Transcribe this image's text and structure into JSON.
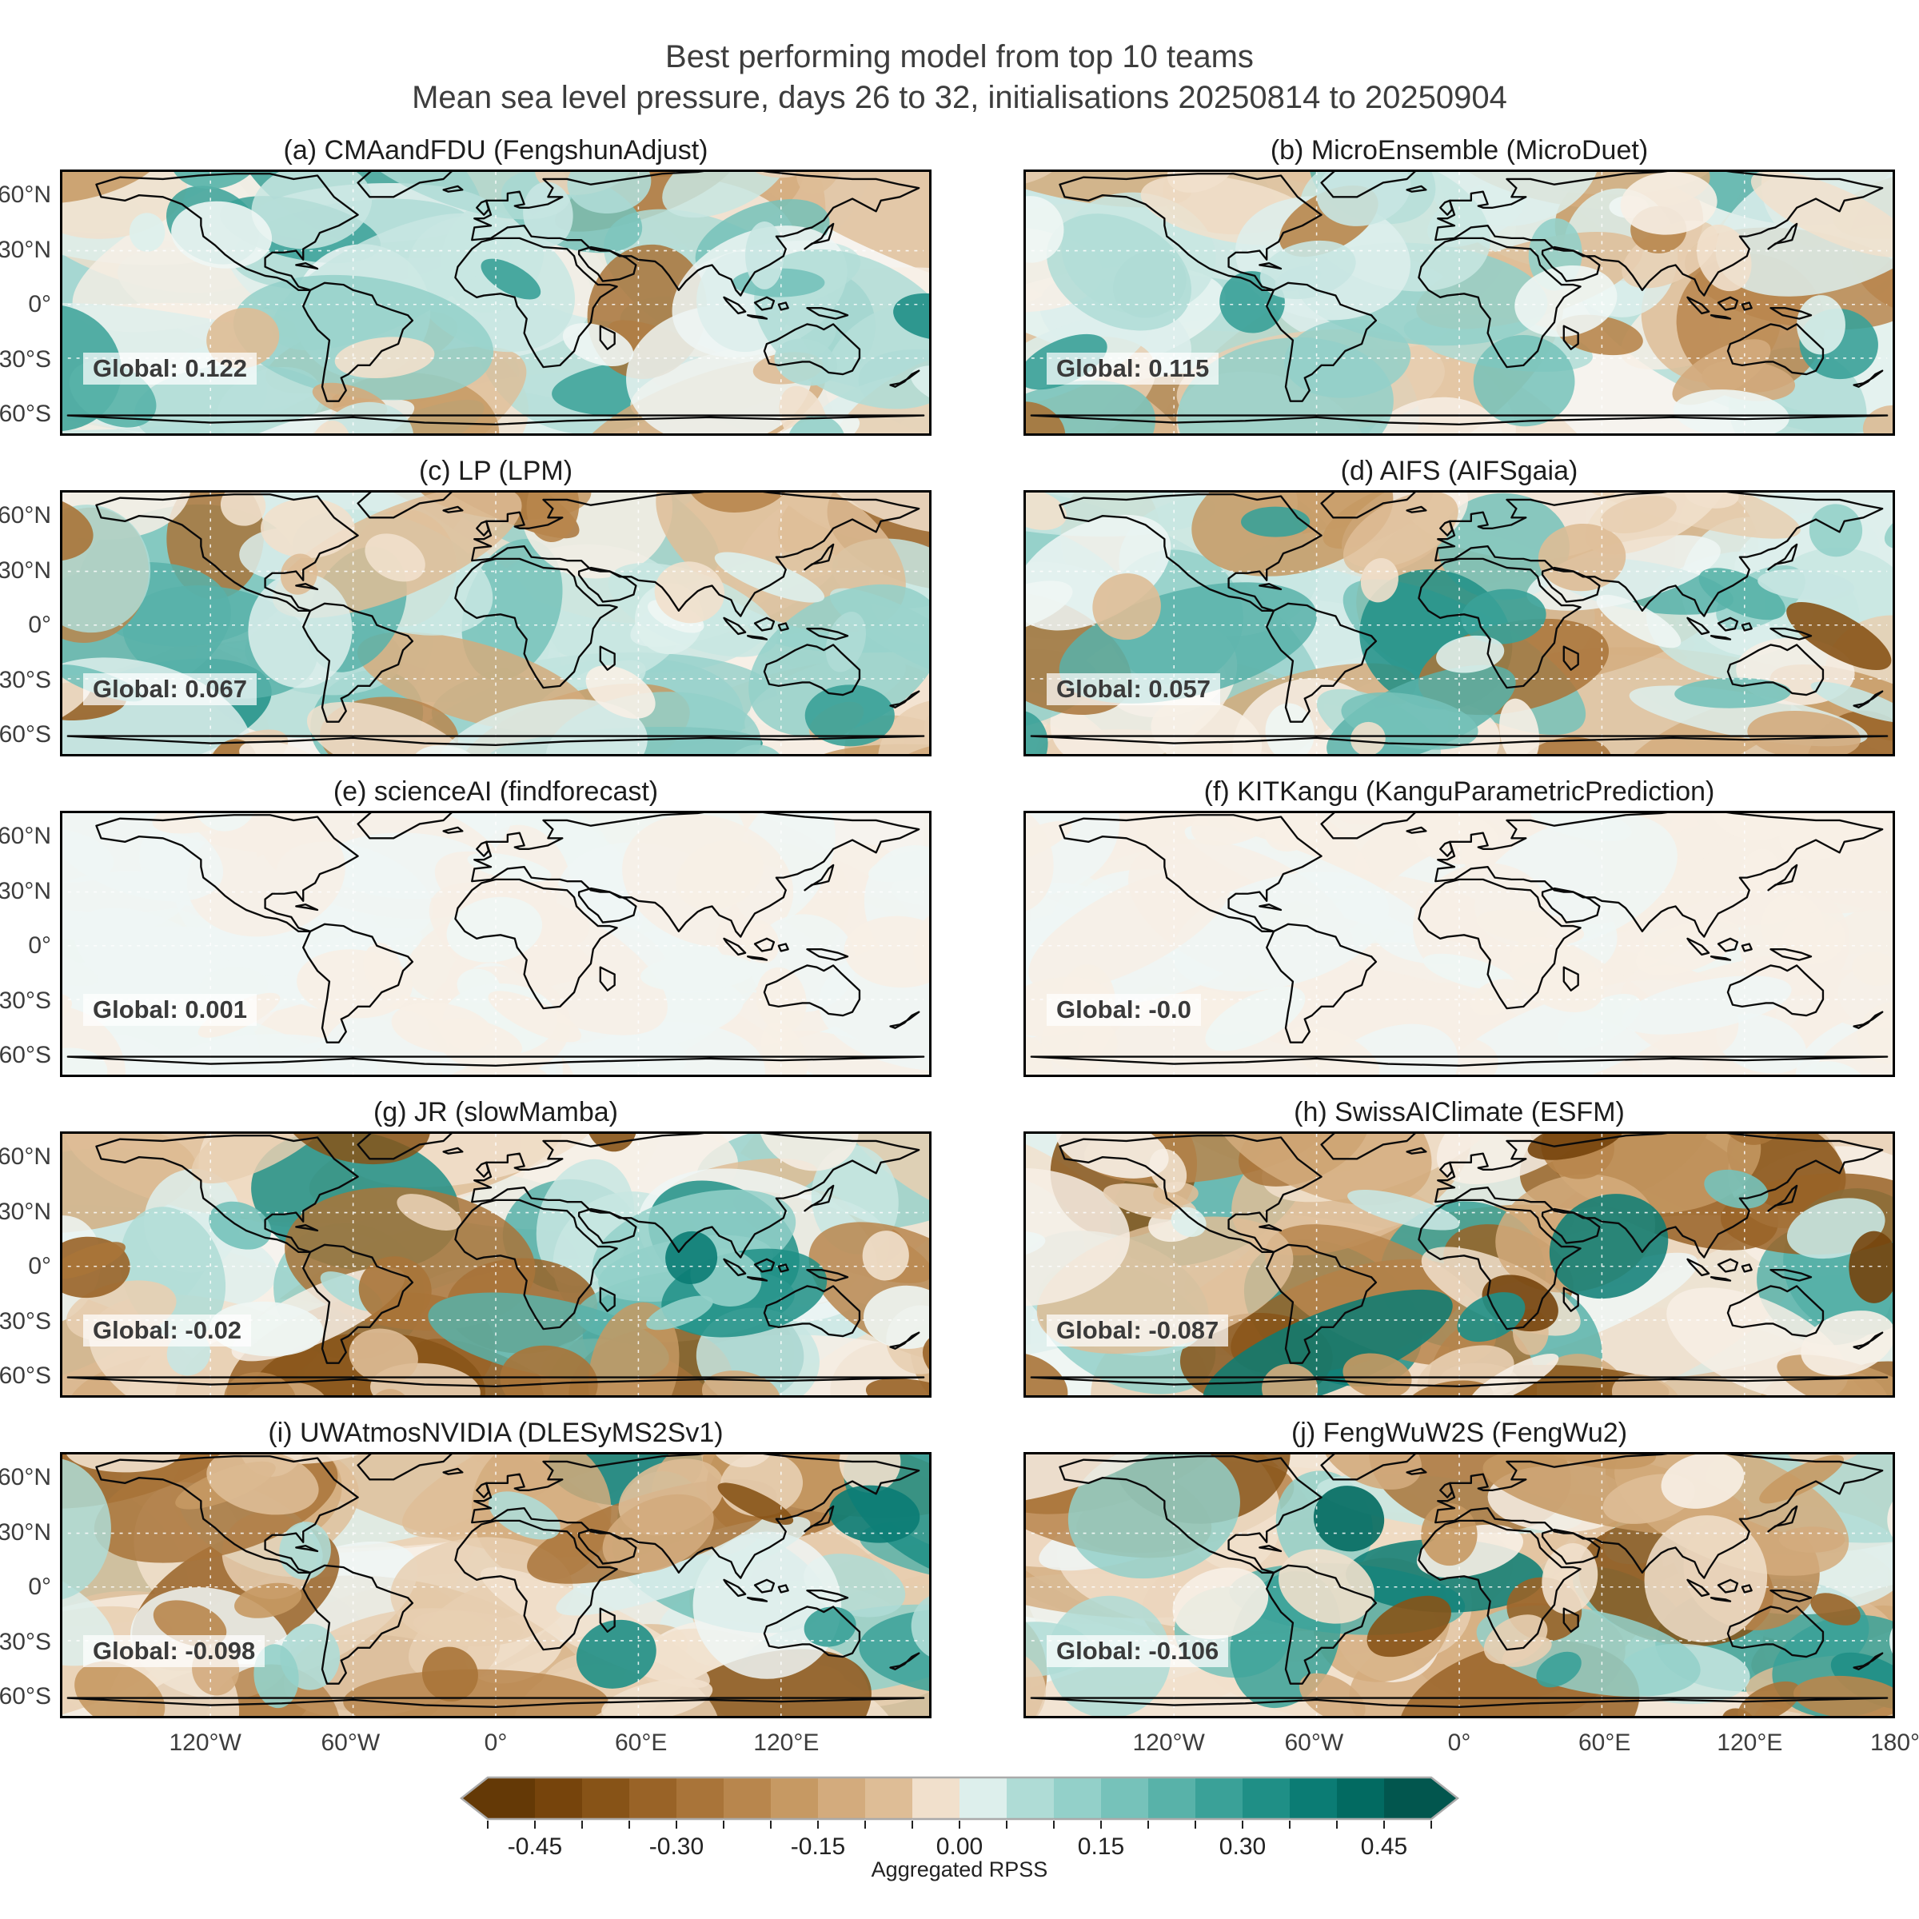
{
  "figure": {
    "title": "Best performing model from top 10 teams",
    "subtitle": "Mean sea level pressure, days 26 to 32, initialisations 20250814 to 20250904"
  },
  "chart_data": {
    "type": "heatmap",
    "subtype": "global-map-grid",
    "projection": "equirectangular",
    "grid": {
      "rows": 5,
      "cols": 2
    },
    "variable": "Mean sea level pressure",
    "lead_days": "26 to 32",
    "initialisations": "20250814 to 20250904",
    "panels": [
      {
        "id": "a",
        "team": "CMAandFDU",
        "model": "FengshunAdjust",
        "title": "(a) CMAandFDU (FengshunAdjust)",
        "global_rpss": 0.122,
        "global_label": "Global: 0.122",
        "column": "left",
        "field_character": {
          "teal_weight": 0.6,
          "band_amp": 0.38,
          "polar_brown": 0.15,
          "amplitude": 0.8,
          "seed": 11
        }
      },
      {
        "id": "b",
        "team": "MicroEnsemble",
        "model": "MicroDuet",
        "title": "(b) MicroEnsemble (MicroDuet)",
        "global_rpss": 0.115,
        "global_label": "Global: 0.115",
        "column": "right",
        "field_character": {
          "teal_weight": 0.6,
          "band_amp": 0.34,
          "polar_brown": 0.15,
          "amplitude": 0.7,
          "seed": 22
        }
      },
      {
        "id": "c",
        "team": "LP",
        "model": "LPM",
        "title": "(c) LP (LPM)",
        "global_rpss": 0.067,
        "global_label": "Global: 0.067",
        "column": "left",
        "field_character": {
          "teal_weight": 0.54,
          "band_amp": 0.34,
          "polar_brown": 0.22,
          "amplitude": 0.85,
          "seed": 33
        }
      },
      {
        "id": "d",
        "team": "AIFS",
        "model": "AIFSgaia",
        "title": "(d) AIFS (AIFSgaia)",
        "global_rpss": 0.057,
        "global_label": "Global: 0.057",
        "column": "right",
        "field_character": {
          "teal_weight": 0.5,
          "band_amp": 0.32,
          "polar_brown": 0.22,
          "amplitude": 0.92,
          "seed": 44
        }
      },
      {
        "id": "e",
        "team": "scienceAI",
        "model": "findforecast",
        "title": "(e) scienceAI (findforecast)",
        "global_rpss": 0.001,
        "global_label": "Global: 0.001",
        "column": "left",
        "field_character": {
          "teal_weight": 0.5,
          "band_amp": 0.0,
          "polar_brown": 0.0,
          "amplitude": 0.05,
          "seed": 55
        }
      },
      {
        "id": "f",
        "team": "KITKangu",
        "model": "KanguParametricPrediction",
        "title": "(f) KITKangu (KanguParametricPrediction)",
        "global_rpss": -0.0,
        "global_label": "Global: -0.0",
        "column": "right",
        "field_character": {
          "teal_weight": 0.45,
          "band_amp": 0.0,
          "polar_brown": 0.0,
          "amplitude": 0.04,
          "seed": 66
        }
      },
      {
        "id": "g",
        "team": "JR",
        "model": "slowMamba",
        "title": "(g) JR (slowMamba)",
        "global_rpss": -0.02,
        "global_label": "Global: -0.02",
        "column": "left",
        "field_character": {
          "teal_weight": 0.47,
          "band_amp": 0.18,
          "polar_brown": 0.45,
          "amplitude": 0.95,
          "seed": 77
        }
      },
      {
        "id": "h",
        "team": "SwissAIClimate",
        "model": "ESFM",
        "title": "(h) SwissAIClimate (ESFM)",
        "global_rpss": -0.087,
        "global_label": "Global: -0.087",
        "column": "right",
        "field_character": {
          "teal_weight": 0.48,
          "band_amp": 0.15,
          "polar_brown": 0.5,
          "amplitude": 1.0,
          "seed": 88
        }
      },
      {
        "id": "i",
        "team": "UWAtmosNVIDIA",
        "model": "DLESyMS2Sv1",
        "title": "(i) UWAtmosNVIDIA (DLESyMS2Sv1)",
        "global_rpss": -0.098,
        "global_label": "Global: -0.098",
        "column": "left",
        "field_character": {
          "teal_weight": 0.44,
          "band_amp": 0.12,
          "polar_brown": 0.45,
          "amplitude": 1.0,
          "seed": 99
        }
      },
      {
        "id": "j",
        "team": "FengWuW2S",
        "model": "FengWu2",
        "title": "(j) FengWuW2S (FengWu2)",
        "global_rpss": -0.106,
        "global_label": "Global: -0.106",
        "column": "right",
        "field_character": {
          "teal_weight": 0.42,
          "band_amp": 0.12,
          "polar_brown": 0.45,
          "amplitude": 1.0,
          "seed": 110
        }
      }
    ],
    "yticks": [
      "60°N",
      "30°N",
      "0°",
      "30°S",
      "60°S"
    ],
    "ytick_lats": [
      60,
      30,
      0,
      -30,
      -60
    ],
    "xticks_left": [
      "120°W",
      "60°W",
      "0°",
      "60°E",
      "120°E"
    ],
    "xtick_lons_left": [
      -120,
      -60,
      0,
      60,
      120
    ],
    "xticks_right": [
      "120°W",
      "60°W",
      "0°",
      "60°E",
      "120°E",
      "180°"
    ],
    "xtick_lons_right": [
      -120,
      -60,
      0,
      60,
      120,
      180
    ],
    "colorbar": {
      "label": "Aggregated RPSS",
      "range": [
        -0.5,
        0.5
      ],
      "segments": 20,
      "ticks": [
        -0.45,
        -0.3,
        -0.15,
        0.0,
        0.15,
        0.3,
        0.45
      ],
      "tick_labels": [
        "-0.45",
        "-0.30",
        "-0.15",
        "0.00",
        "0.15",
        "0.30",
        "0.45"
      ],
      "colors": {
        "negative_extreme": "#643906",
        "negative_mid": "#a66f38",
        "neutral": "#f6f3ec",
        "positive_mid": "#379f96",
        "positive_extreme": "#02635a"
      }
    }
  }
}
